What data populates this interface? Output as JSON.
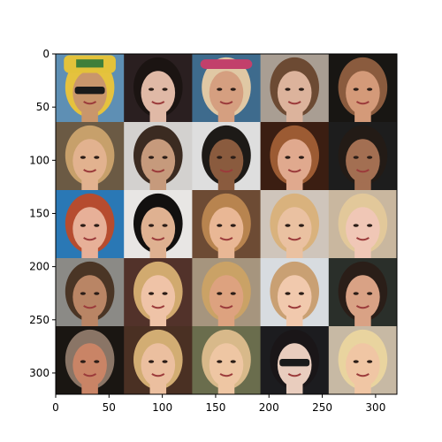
{
  "chart_data": {
    "type": "heatmap",
    "image_kind": "face-thumbnail-grid",
    "title": "",
    "xlabel": "",
    "ylabel": "",
    "grid": false,
    "xlim": [
      0,
      320
    ],
    "ylim": [
      320,
      0
    ],
    "xticks": [
      0,
      50,
      100,
      150,
      200,
      250,
      300
    ],
    "yticks": [
      0,
      50,
      100,
      150,
      200,
      250,
      300
    ],
    "rows": 5,
    "cols": 5,
    "tile_size": 64,
    "tiles": [
      [
        {
          "bg": "#5e8fb4",
          "hair": "#e5c23e",
          "skin": "#c9966c",
          "accessory": "cap-sunglasses"
        },
        {
          "bg": "#2a1f20",
          "hair": "#1b1412",
          "skin": "#e0b9a6",
          "accessory": "none"
        },
        {
          "bg": "#3e6b8d",
          "hair": "#e0c8a4",
          "skin": "#d59f80",
          "accessory": "visor"
        },
        {
          "bg": "#a99e93",
          "hair": "#6c4a33",
          "skin": "#dcb39c",
          "accessory": "none"
        },
        {
          "bg": "#181613",
          "hair": "#8a5b3e",
          "skin": "#d49a79",
          "accessory": "none"
        }
      ],
      [
        {
          "bg": "#6b5a44",
          "hair": "#c7a06b",
          "skin": "#e2b28f",
          "accessory": "none"
        },
        {
          "bg": "#d3d1cf",
          "hair": "#3b2b21",
          "skin": "#c69a7c",
          "accessory": "none"
        },
        {
          "bg": "#dedede",
          "hair": "#1d1a17",
          "skin": "#8a5b3e",
          "accessory": "none"
        },
        {
          "bg": "#3b1e12",
          "hair": "#9c5b33",
          "skin": "#e0a98e",
          "accessory": "none"
        },
        {
          "bg": "#1d1d1d",
          "hair": "#231b16",
          "skin": "#a36f52",
          "accessory": "none"
        }
      ],
      [
        {
          "bg": "#2a78b5",
          "hair": "#b64c2f",
          "skin": "#e7b098",
          "accessory": "none"
        },
        {
          "bg": "#e8e6e4",
          "hair": "#12100f",
          "skin": "#dfb191",
          "accessory": "none"
        },
        {
          "bg": "#6d4b34",
          "hair": "#b8844f",
          "skin": "#e9b795",
          "accessory": "none"
        },
        {
          "bg": "#cfc5bb",
          "hair": "#d9b27d",
          "skin": "#eac1a1",
          "accessory": "none"
        },
        {
          "bg": "#c9b79f",
          "hair": "#e2c89a",
          "skin": "#f0c7b6",
          "accessory": "none"
        }
      ],
      [
        {
          "bg": "#8b8a86",
          "hair": "#4a3525",
          "skin": "#b98565",
          "accessory": "none"
        },
        {
          "bg": "#52322a",
          "hair": "#d1aa6f",
          "skin": "#efc3a7",
          "accessory": "none"
        },
        {
          "bg": "#a6957e",
          "hair": "#caa266",
          "skin": "#dda27f",
          "accessory": "none"
        },
        {
          "bg": "#d8dce0",
          "hair": "#c9a073",
          "skin": "#f1c9ad",
          "accessory": "none"
        },
        {
          "bg": "#2a2f2a",
          "hair": "#2a1e18",
          "skin": "#d9a285",
          "accessory": "none"
        }
      ],
      [
        {
          "bg": "#1a1612",
          "hair": "#8a7566",
          "skin": "#c98466",
          "accessory": "none"
        },
        {
          "bg": "#4a3023",
          "hair": "#d2ad73",
          "skin": "#ebbf9f",
          "accessory": "none"
        },
        {
          "bg": "#6a6d4d",
          "hair": "#d8b98a",
          "skin": "#eec6a3",
          "accessory": "none"
        },
        {
          "bg": "#1c1c1f",
          "hair": "#1a1618",
          "skin": "#e9cdbe",
          "accessory": "sunglasses"
        },
        {
          "bg": "#c7b9a4",
          "hair": "#e9d49f",
          "skin": "#f0c6a4",
          "accessory": "none"
        }
      ]
    ]
  }
}
